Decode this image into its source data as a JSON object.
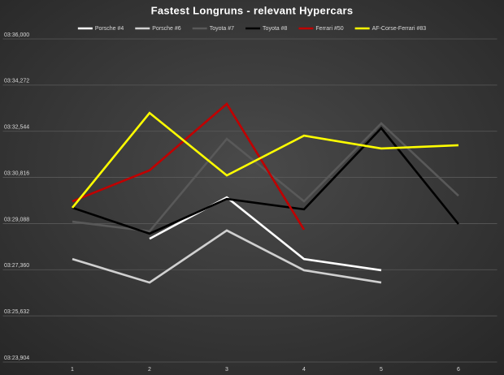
{
  "chart_data": {
    "type": "line",
    "title": "Fastest Longruns - relevant Hypercars",
    "categories": [
      "1",
      "2",
      "3",
      "4",
      "5",
      "6"
    ],
    "series": [
      {
        "name": "Porsche #4",
        "color": "#ffffff",
        "values": [
          null,
          208.52,
          210.07,
          207.76,
          207.34,
          null
        ]
      },
      {
        "name": "Porsche #6",
        "color": "#d0d0d0",
        "values": [
          207.76,
          206.88,
          208.83,
          207.34,
          206.88,
          null
        ]
      },
      {
        "name": "Toyota #7",
        "color": "#595959",
        "values": [
          209.16,
          208.8,
          212.26,
          209.92,
          212.84,
          210.13
        ]
      },
      {
        "name": "Toyota #8",
        "color": "#000000",
        "values": [
          209.68,
          208.71,
          210.01,
          209.62,
          212.66,
          209.07
        ]
      },
      {
        "name": "Ferrari #50",
        "color": "#c00000",
        "values": [
          209.92,
          211.08,
          213.57,
          208.86,
          null,
          null
        ]
      },
      {
        "name": "AF-Corse-Ferrari #83",
        "color": "#ffff00",
        "values": [
          209.68,
          213.23,
          210.89,
          212.38,
          211.9,
          212.02
        ]
      }
    ],
    "ylim": [
      203.904,
      216.0
    ],
    "yticks": [
      {
        "value": 203.904,
        "label": "03:23,904"
      },
      {
        "value": 205.632,
        "label": "03:25,632"
      },
      {
        "value": 207.36,
        "label": "03:27,360"
      },
      {
        "value": 209.088,
        "label": "03:29,088"
      },
      {
        "value": 210.816,
        "label": "03:30,816"
      },
      {
        "value": 212.544,
        "label": "03:32,544"
      },
      {
        "value": 214.272,
        "label": "03:34,272"
      },
      {
        "value": 216.0,
        "label": "03:36,000"
      }
    ],
    "grid": true,
    "legend": "top"
  }
}
